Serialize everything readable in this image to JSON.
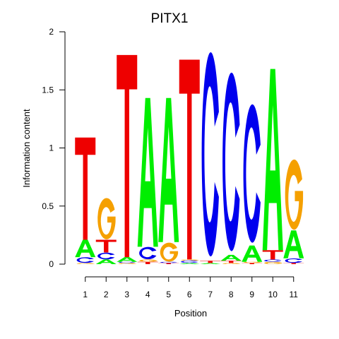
{
  "chart_data": {
    "type": "sequence-logo",
    "title": "PITX1",
    "xlabel": "Position",
    "ylabel": "Information content",
    "ylim": [
      0,
      2
    ],
    "y_ticks": [
      "0",
      "0.5",
      "1",
      "1.5",
      "2"
    ],
    "y_tick_values": [
      0,
      0.5,
      1,
      1.5,
      2
    ],
    "positions": [
      "1",
      "2",
      "3",
      "4",
      "5",
      "6",
      "7",
      "8",
      "9",
      "10",
      "11"
    ],
    "colors": {
      "A": "#00ee00",
      "C": "#0000ee",
      "G": "#f5a000",
      "T": "#ee0000"
    },
    "columns": [
      [
        {
          "letter": "G",
          "height": 0.01
        },
        {
          "letter": "C",
          "height": 0.05
        },
        {
          "letter": "A",
          "height": 0.15
        },
        {
          "letter": "T",
          "height": 0.88
        }
      ],
      [
        {
          "letter": "A",
          "height": 0.04
        },
        {
          "letter": "C",
          "height": 0.06
        },
        {
          "letter": "T",
          "height": 0.11
        },
        {
          "letter": "G",
          "height": 0.37
        }
      ],
      [
        {
          "letter": "G",
          "height": 0.01
        },
        {
          "letter": "C",
          "height": 0.01
        },
        {
          "letter": "A",
          "height": 0.04
        },
        {
          "letter": "T",
          "height": 1.74
        }
      ],
      [
        {
          "letter": "T",
          "height": 0.02
        },
        {
          "letter": "G",
          "height": 0.02
        },
        {
          "letter": "C",
          "height": 0.11
        },
        {
          "letter": "A",
          "height": 1.28
        }
      ],
      [
        {
          "letter": "T",
          "height": 0.01
        },
        {
          "letter": "C",
          "height": 0.01
        },
        {
          "letter": "G",
          "height": 0.17
        },
        {
          "letter": "A",
          "height": 1.24
        }
      ],
      [
        {
          "letter": "A",
          "height": 0.01
        },
        {
          "letter": "C",
          "height": 0.02
        },
        {
          "letter": "G",
          "height": 0.01
        },
        {
          "letter": "T",
          "height": 1.72
        }
      ],
      [
        {
          "letter": "A",
          "height": 0.01
        },
        {
          "letter": "T",
          "height": 0.02
        },
        {
          "letter": "C",
          "height": 1.83
        }
      ],
      [
        {
          "letter": "G",
          "height": 0.01
        },
        {
          "letter": "T",
          "height": 0.02
        },
        {
          "letter": "A",
          "height": 0.05
        },
        {
          "letter": "C",
          "height": 1.6
        }
      ],
      [
        {
          "letter": "T",
          "height": 0.01
        },
        {
          "letter": "G",
          "height": 0.01
        },
        {
          "letter": "A",
          "height": 0.14
        },
        {
          "letter": "C",
          "height": 1.24
        }
      ],
      [
        {
          "letter": "G",
          "height": 0.02
        },
        {
          "letter": "C",
          "height": 0.02
        },
        {
          "letter": "T",
          "height": 0.08
        },
        {
          "letter": "A",
          "height": 1.56
        }
      ],
      [
        {
          "letter": "T",
          "height": 0.01
        },
        {
          "letter": "C",
          "height": 0.04
        },
        {
          "letter": "A",
          "height": 0.24
        },
        {
          "letter": "G",
          "height": 0.63
        }
      ]
    ]
  }
}
